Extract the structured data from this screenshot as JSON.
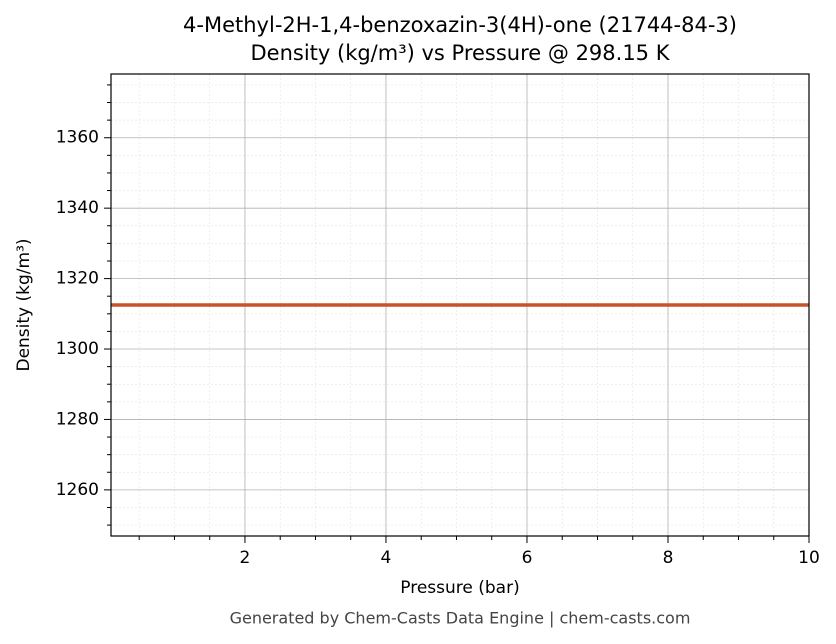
{
  "chart_data": {
    "type": "line",
    "title": "4-Methyl-2H-1,4-benzoxazin-3(4H)-one (21744-84-3)",
    "subtitle": "Density (kg/m³) vs Pressure @ 298.15 K",
    "x_label": "Pressure (bar)",
    "y_label": "Density (kg/m³)",
    "footer": "Generated by Chem-Casts Data Engine | chem-casts.com",
    "x": [
      0.1,
      10
    ],
    "series": [
      {
        "name": "Density",
        "color": "#c8522a",
        "values": [
          1312.5,
          1312.5
        ]
      }
    ],
    "xlim": [
      0.1,
      10
    ],
    "ylim": [
      1246.9,
      1378.1
    ],
    "xticks": [
      2,
      4,
      6,
      8,
      10
    ],
    "yticks": [
      1260,
      1280,
      1300,
      1320,
      1340,
      1360
    ],
    "minor_xticks": [
      0.5,
      1,
      1.5,
      2.5,
      3,
      3.5,
      4.5,
      5,
      5.5,
      6.5,
      7,
      7.5,
      8.5,
      9,
      9.5
    ],
    "minor_yticks": [
      1250,
      1255,
      1265,
      1270,
      1275,
      1285,
      1290,
      1295,
      1305,
      1310,
      1315,
      1325,
      1330,
      1335,
      1345,
      1350,
      1355,
      1365,
      1370,
      1375
    ],
    "grid": true
  }
}
